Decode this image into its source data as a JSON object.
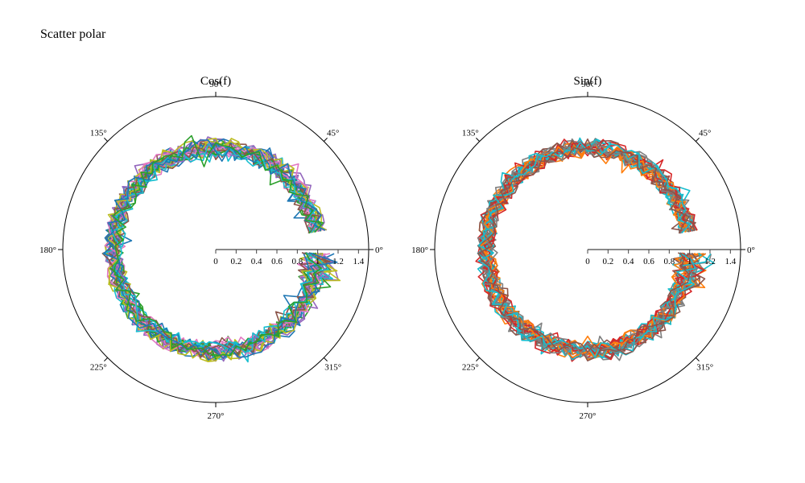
{
  "page": {
    "title": "Scatter polar"
  },
  "chart_data": [
    {
      "type": "scatter",
      "mode": "lines",
      "subtitle": "Cos(f)",
      "radial_axis": {
        "range": [
          0,
          1.5
        ],
        "ticks": [
          "0",
          "0.2",
          "0.4",
          "0.6",
          "0.8",
          "1",
          "1.2",
          "1.4"
        ],
        "angle_deg": 0
      },
      "angular_axis": {
        "ticks": [
          "0°",
          "45°",
          "90°",
          "135°",
          "180°",
          "225°",
          "270°",
          "315°"
        ],
        "direction": "counterclockwise"
      },
      "curve": "r ≈ 1 (radius ~1, noisy) for θ from about 10° to 360°, plus a spike near 0°",
      "theta_start_deg": 10,
      "theta_end_deg": 360,
      "r_mean": 1.0,
      "series_count": 30,
      "series_colors": [
        "#1f77b4",
        "#2ca02c",
        "#9467bd",
        "#e377c2",
        "#bcbd22",
        "#8c564b",
        "#17becf"
      ]
    },
    {
      "type": "scatter",
      "mode": "lines",
      "subtitle": "Sin(f)",
      "radial_axis": {
        "range": [
          0,
          1.5
        ],
        "ticks": [
          "0",
          "0.2",
          "0.4",
          "0.6",
          "0.8",
          "1",
          "1.2",
          "1.4"
        ],
        "angle_deg": 0
      },
      "angular_axis": {
        "ticks": [
          "0°",
          "45°",
          "90°",
          "135°",
          "180°",
          "225°",
          "270°",
          "315°"
        ],
        "direction": "counterclockwise"
      },
      "curve": "r ≈ 1 (radius ~1, noisy) for θ from about 10° to 360°, plus a spike near 0°",
      "theta_start_deg": 10,
      "theta_end_deg": 360,
      "r_mean": 1.0,
      "series_count": 30,
      "series_colors": [
        "#d62728",
        "#ff7f0e",
        "#7f7f7f",
        "#17becf",
        "#8c564b"
      ]
    }
  ]
}
